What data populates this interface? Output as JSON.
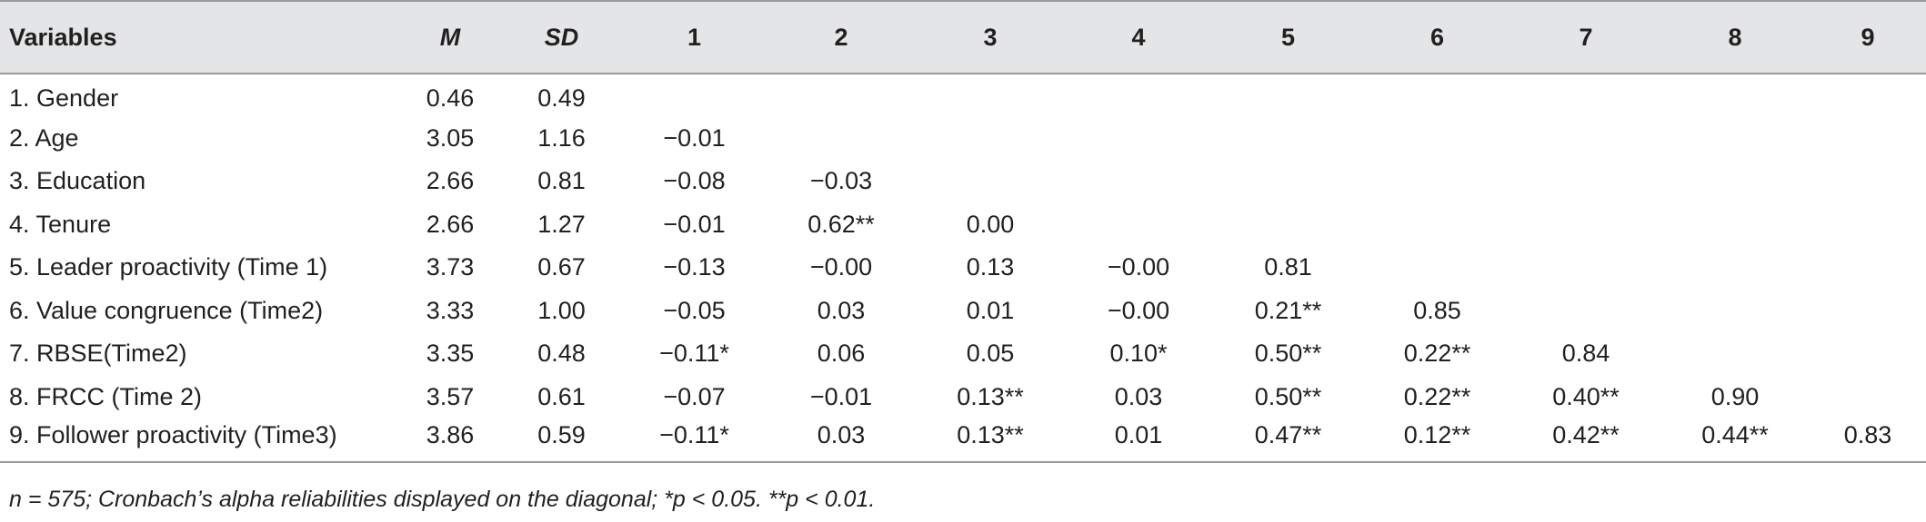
{
  "table": {
    "headers": [
      "Variables",
      "M",
      "SD",
      "1",
      "2",
      "3",
      "4",
      "5",
      "6",
      "7",
      "8",
      "9"
    ],
    "rows": [
      {
        "label": "1. Gender",
        "m": "0.46",
        "sd": "0.49",
        "cells": [
          "",
          "",
          "",
          "",
          "",
          "",
          "",
          "",
          ""
        ]
      },
      {
        "label": "2. Age",
        "m": "3.05",
        "sd": "1.16",
        "cells": [
          "−0.01",
          "",
          "",
          "",
          "",
          "",
          "",
          "",
          ""
        ]
      },
      {
        "label": "3. Education",
        "m": "2.66",
        "sd": "0.81",
        "cells": [
          "−0.08",
          "−0.03",
          "",
          "",
          "",
          "",
          "",
          "",
          ""
        ]
      },
      {
        "label": "4. Tenure",
        "m": "2.66",
        "sd": "1.27",
        "cells": [
          "−0.01",
          "0.62**",
          "0.00",
          "",
          "",
          "",
          "",
          "",
          ""
        ]
      },
      {
        "label": "5. Leader proactivity (Time 1)",
        "m": "3.73",
        "sd": "0.67",
        "cells": [
          "−0.13",
          "−0.00",
          "0.13",
          "−0.00",
          "0.81",
          "",
          "",
          "",
          ""
        ]
      },
      {
        "label": "6. Value congruence (Time2)",
        "m": "3.33",
        "sd": "1.00",
        "cells": [
          "−0.05",
          "0.03",
          "0.01",
          "−0.00",
          "0.21**",
          "0.85",
          "",
          "",
          ""
        ]
      },
      {
        "label": "7. RBSE(Time2)",
        "m": "3.35",
        "sd": "0.48",
        "cells": [
          "−0.11*",
          "0.06",
          "0.05",
          "0.10*",
          "0.50**",
          "0.22**",
          "0.84",
          "",
          ""
        ]
      },
      {
        "label": "8. FRCC (Time 2)",
        "m": "3.57",
        "sd": "0.61",
        "cells": [
          "−0.07",
          "−0.01",
          "0.13**",
          "0.03",
          "0.50**",
          "0.22**",
          "0.40**",
          "0.90",
          ""
        ]
      },
      {
        "label": "9. Follower proactivity (Time3)",
        "m": "3.86",
        "sd": "0.59",
        "cells": [
          "−0.11*",
          "0.03",
          "0.13**",
          "0.01",
          "0.47**",
          "0.12**",
          "0.42**",
          "0.44**",
          "0.83"
        ]
      }
    ]
  },
  "note": "n = 575; Cronbach’s alpha reliabilities displayed on the diagonal; *p < 0.05. **p < 0.01.",
  "colors": {
    "header_bg": "#e4e5e7",
    "rule": "#9a9b9d",
    "text": "#231f20"
  }
}
